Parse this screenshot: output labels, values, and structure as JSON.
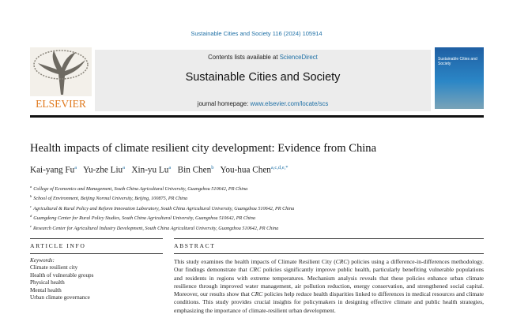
{
  "journal_ref": "Sustainable Cities and Society 116 (2024) 105914",
  "header": {
    "contents_prefix": "Contents lists available at",
    "contents_link": "ScienceDirect",
    "journal_title": "Sustainable Cities and Society",
    "homepage_prefix": "journal homepage:",
    "homepage_link": "www.elsevier.com/locate/scs",
    "publisher": "ELSEVIER",
    "cover_title": "Sustainable Cities and Society"
  },
  "article": {
    "title": "Health impacts of climate resilient city development: Evidence from China",
    "authors": [
      {
        "name": "Kai-yang Fu",
        "sup": "a"
      },
      {
        "name": "Yu-zhe Liu",
        "sup": "a"
      },
      {
        "name": "Xin-yu Lu",
        "sup": "a"
      },
      {
        "name": "Bin Chen",
        "sup": "b"
      },
      {
        "name": "You-hua Chen",
        "sup": "a,c,d,e,*"
      }
    ],
    "affiliations": [
      {
        "mark": "a",
        "text": "College of Economics and Management, South China Agricultural University, Guangzhou 510642, PR China"
      },
      {
        "mark": "b",
        "text": "School of Environment, Beijing Normal University, Beijing, 100875, PR China"
      },
      {
        "mark": "c",
        "text": "Agricultural & Rural Policy and Reform Innovation Laboratory, South China Agricultural University, Guangzhou 510642, PR China"
      },
      {
        "mark": "d",
        "text": "Guangdong Center for Rural Policy Studies, South China Agricultural University, Guangzhou 510642, PR China"
      },
      {
        "mark": "e",
        "text": "Research Center for Agricultural Industry Development, South China Agricultural University, Guangzhou 510642, PR China"
      }
    ]
  },
  "article_info": {
    "heading": "ARTICLE INFO",
    "keywords_label": "Keywords:",
    "keywords": [
      "Climate resilient city",
      "Health of vulnerable groups",
      "Physical health",
      "Mental health",
      "Urban climate governance"
    ]
  },
  "abstract": {
    "heading": "ABSTRACT",
    "segments": [
      "This study examines the health impacts of Climate Resilient City (",
      "CRC",
      ") policies using a difference-in-differences methodology. Our findings demonstrate that ",
      "CRC",
      " policies significantly improve public health, particularly benefiting vulnerable populations and residents in regions with extreme temperatures. Mechanism analysis reveals that these policies enhance urban climate resilience through improved water management, air pollution reduction, energy conservation, and strengthened social capital. Moreover, our results show that ",
      "CRC",
      " policies help reduce health disparities linked to differences in medical resources and climate conditions. This study provides crucial insights for policymakers in designing effective climate and public health strategies, emphasizing the importance of climate-resilient urban development."
    ]
  }
}
